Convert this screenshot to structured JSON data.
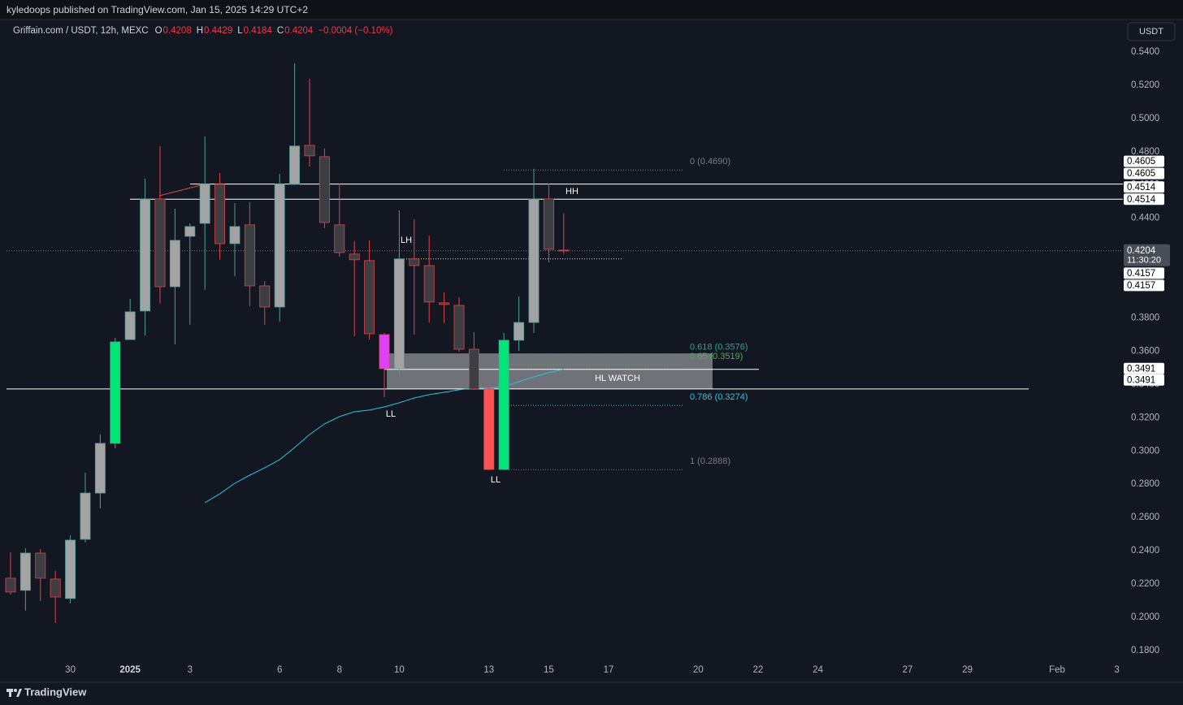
{
  "page": {
    "published": "kyledoops published on TradingView.com, Jan 15, 2025 14:29 UTC+2",
    "footer": "TradingView"
  },
  "chart_data": {
    "type": "candlestick",
    "legend": {
      "symbol": "Griffain.com / USDT, 12h, MEXC",
      "ohlc": [
        {
          "key": "O",
          "value": 0.4208
        },
        {
          "key": "H",
          "value": 0.4429
        },
        {
          "key": "L",
          "value": 0.4184
        },
        {
          "key": "C",
          "value": 0.4204
        }
      ],
      "change": "−0.0004 (−0.10%)"
    },
    "currency": "USDT",
    "open": [
      0.2235,
      0.2162,
      0.2386,
      0.223,
      0.2113,
      0.2469,
      0.2747,
      0.3046,
      0.367,
      0.3842,
      0.4516,
      0.3988,
      0.4291,
      0.4369,
      0.4604,
      0.4247,
      0.436,
      0.3993,
      0.3866,
      0.4604,
      0.4838,
      0.477,
      0.436,
      0.4184,
      0.4145,
      0.37,
      0.3495,
      0.4155,
      0.4115,
      0.3891,
      0.3876,
      0.3612,
      0.3373,
      0.2889,
      0.3666,
      0.3773,
      0.4516,
      0.4208
    ],
    "high": [
      0.239,
      0.2415,
      0.241,
      0.2279,
      0.2494,
      0.287,
      0.31,
      0.368,
      0.3915,
      0.4638,
      0.4834,
      0.4457,
      0.4369,
      0.4892,
      0.4672,
      0.4491,
      0.4496,
      0.4022,
      0.4667,
      0.5332,
      0.5239,
      0.4819,
      0.4609,
      0.4262,
      0.4267,
      0.371,
      0.4447,
      0.4394,
      0.4296,
      0.3954,
      0.3925,
      0.3715,
      0.3397,
      0.371,
      0.393,
      0.4697,
      0.4609,
      0.4429
    ],
    "low": [
      0.2137,
      0.204,
      0.2098,
      0.1966,
      0.2083,
      0.245,
      0.2655,
      0.3016,
      0.367,
      0.3695,
      0.3886,
      0.3641,
      0.3759,
      0.3969,
      0.415,
      0.4052,
      0.3871,
      0.3759,
      0.3778,
      0.4599,
      0.4711,
      0.434,
      0.4169,
      0.369,
      0.367,
      0.3324,
      0.3456,
      0.37,
      0.3773,
      0.3769,
      0.3597,
      0.3368,
      0.2885,
      0.2885,
      0.3602,
      0.371,
      0.4135,
      0.4184
    ],
    "close": [
      0.2152,
      0.2386,
      0.2235,
      0.2122,
      0.2464,
      0.2747,
      0.3046,
      0.3656,
      0.3837,
      0.4516,
      0.3988,
      0.4267,
      0.435,
      0.4604,
      0.4247,
      0.435,
      0.3993,
      0.3866,
      0.4604,
      0.4834,
      0.4775,
      0.4374,
      0.4193,
      0.415,
      0.3705,
      0.3495,
      0.4155,
      0.4115,
      0.3896,
      0.3881,
      0.3612,
      0.3373,
      0.2889,
      0.3666,
      0.3773,
      0.4516,
      0.4213,
      0.4204
    ],
    "colors": [
      "#3d3d42",
      "#a3a3a3",
      "#3d3d42",
      "#3d3d42",
      "#a3a3a3",
      "#a3a3a3",
      "#a3a3a3",
      "#00e676",
      "#a3a3a3",
      "#a3a3a3",
      "#3d3d42",
      "#a3a3a3",
      "#a3a3a3",
      "#a3a3a3",
      "#3d3d42",
      "#a3a3a3",
      "#3d3d42",
      "#3d3d42",
      "#a3a3a3",
      "#a3a3a3",
      "#3d3d42",
      "#3d3d42",
      "#3d3d42",
      "#3d3d42",
      "#3d3d42",
      "#e040fb",
      "#a3a3a3",
      "#3d3d42",
      "#3d3d42",
      "#3d3d42",
      "#3d3d42",
      "#3d3d42",
      "#ff5252",
      "#00e676",
      "#a3a3a3",
      "#a3a3a3",
      "#3d3d42",
      "#3d3d42"
    ],
    "up_wick": "#4f9d94",
    "down_wick": "#e0454b",
    "ema": {
      "color": "#26c6da",
      "values": [
        null,
        null,
        null,
        null,
        null,
        null,
        null,
        null,
        null,
        null,
        null,
        null,
        null,
        0.2689,
        0.2743,
        0.2806,
        0.2855,
        0.2899,
        0.2948,
        0.3021,
        0.3099,
        0.3163,
        0.3207,
        0.3236,
        0.3246,
        0.3265,
        0.329,
        0.3319,
        0.3339,
        0.3353,
        0.3368,
        0.3378,
        0.3378,
        0.3388,
        0.3417,
        0.3446,
        0.3471,
        0.3491
      ]
    },
    "xlim": [
      -0.27,
      74.4
    ],
    "xticks": [
      {
        "value": 4,
        "label": "30"
      },
      {
        "value": 8,
        "label": "2025"
      },
      {
        "value": 12,
        "label": "3"
      },
      {
        "value": 18,
        "label": "6"
      },
      {
        "value": 22,
        "label": "8"
      },
      {
        "value": 26,
        "label": "10"
      },
      {
        "value": 32,
        "label": "13"
      },
      {
        "value": 36,
        "label": "15"
      },
      {
        "value": 40,
        "label": "17"
      },
      {
        "value": 46,
        "label": "20"
      },
      {
        "value": 50,
        "label": "22"
      },
      {
        "value": 54,
        "label": "24"
      },
      {
        "value": 60,
        "label": "27"
      },
      {
        "value": 64,
        "label": "29"
      },
      {
        "value": 70,
        "label": "Feb"
      },
      {
        "value": 74,
        "label": "3"
      }
    ],
    "ylim": [
      0.1746,
      0.5595
    ],
    "yticks": [
      {
        "value": 0.54,
        "label": "0.5400"
      },
      {
        "value": 0.52,
        "label": "0.5200"
      },
      {
        "value": 0.5,
        "label": "0.5000"
      },
      {
        "value": 0.48,
        "label": "0.4800"
      },
      {
        "value": 0.46,
        "label": "0.4600"
      },
      {
        "value": 0.44,
        "label": "0.4400"
      },
      {
        "value": 0.42,
        "label": "0.4200"
      },
      {
        "value": 0.4,
        "label": "0.4000"
      },
      {
        "value": 0.38,
        "label": "0.3800"
      },
      {
        "value": 0.36,
        "label": "0.3600"
      },
      {
        "value": 0.34,
        "label": "0.3400"
      },
      {
        "value": 0.32,
        "label": "0.3200"
      },
      {
        "value": 0.3,
        "label": "0.3000"
      },
      {
        "value": 0.28,
        "label": "0.2800"
      },
      {
        "value": 0.26,
        "label": "0.2600"
      },
      {
        "value": 0.24,
        "label": "0.2400"
      },
      {
        "value": 0.22,
        "label": "0.2200"
      },
      {
        "value": 0.2,
        "label": "0.2000"
      },
      {
        "value": 0.18,
        "label": "0.1800"
      }
    ],
    "grid": false,
    "levels": [
      {
        "value": 0.4605,
        "color": "#ffffff"
      },
      {
        "value": 0.4514,
        "color": "#ffffff"
      },
      {
        "value": 0.3491,
        "color": "#ffffff"
      },
      {
        "value": 0.3373,
        "color": "#ffffff"
      },
      {
        "value": 0.4204,
        "color": "#787b86",
        "style": "dotted"
      },
      {
        "value": 0.4155,
        "color": "#d1d4dc",
        "style": "dotted"
      }
    ],
    "fib": [
      {
        "label": "0 (0.4690)",
        "value": 0.469,
        "color": "#787b86"
      },
      {
        "label": "0.618 (0.3576)",
        "value": 0.3576,
        "color": "#26a69a"
      },
      {
        "label": "0.65 (0.3519)",
        "value": 0.3519,
        "color": "#4caf50"
      },
      {
        "label": "0.786 (0.3274)",
        "value": 0.3274,
        "color": "#26c6da"
      },
      {
        "label": "1 (0.2888)",
        "value": 0.2888,
        "color": "#787b86"
      }
    ],
    "box": {
      "label": "HL WATCH",
      "top": 0.3587,
      "bottom": 0.3373
    },
    "annotations": [
      {
        "text": "LH"
      },
      {
        "text": "HH"
      },
      {
        "text": "LL"
      },
      {
        "text": "LL"
      }
    ],
    "price_tags": [
      0.4605,
      0.4605,
      0.4514,
      0.4514,
      0.4157,
      0.4157,
      0.3491,
      0.3491
    ],
    "last_price": {
      "value": 0.4204,
      "countdown": "11:30:20"
    }
  }
}
